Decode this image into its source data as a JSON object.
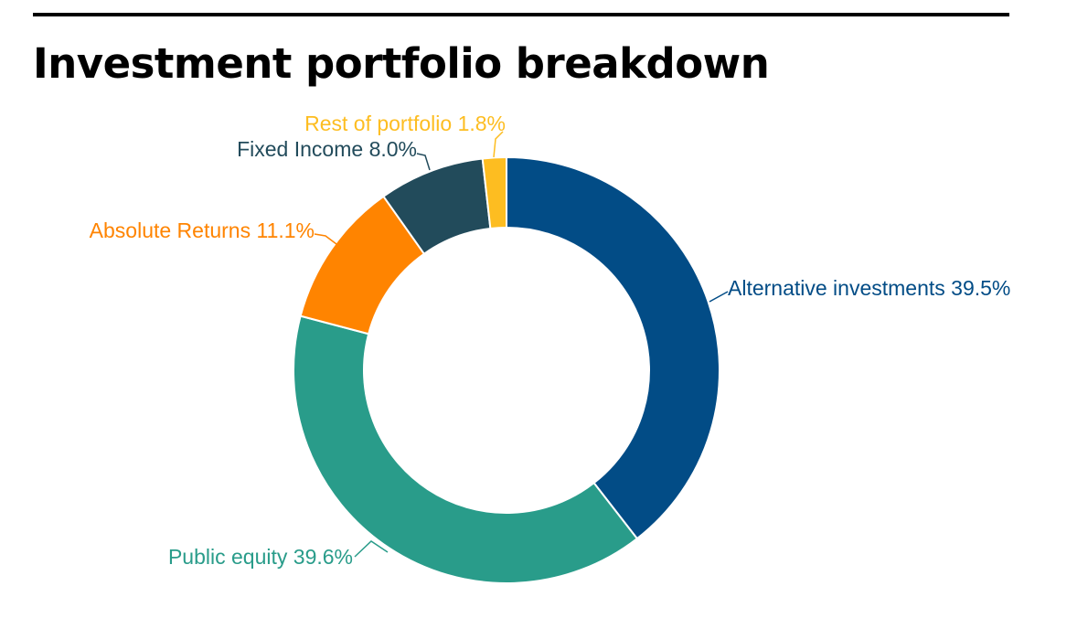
{
  "chart_data": {
    "type": "pie",
    "title": "Investment portfolio breakdown",
    "variant": "donut",
    "legend": "none",
    "slices": [
      {
        "label": "Alternative investments",
        "value": 39.5,
        "display": "39.5%",
        "color": "#024C86"
      },
      {
        "label": "Public equity",
        "value": 39.6,
        "display": "39.6%",
        "color": "#299C8A"
      },
      {
        "label": "Absolute Returns",
        "value": 11.1,
        "display": "11.1%",
        "color": "#FF8400"
      },
      {
        "label": "Fixed Income",
        "value": 8.0,
        "display": "8.0%",
        "color": "#224B5B"
      },
      {
        "label": "Rest of portfolio",
        "value": 1.8,
        "display": "1.8%",
        "color": "#FDBD21"
      }
    ]
  }
}
